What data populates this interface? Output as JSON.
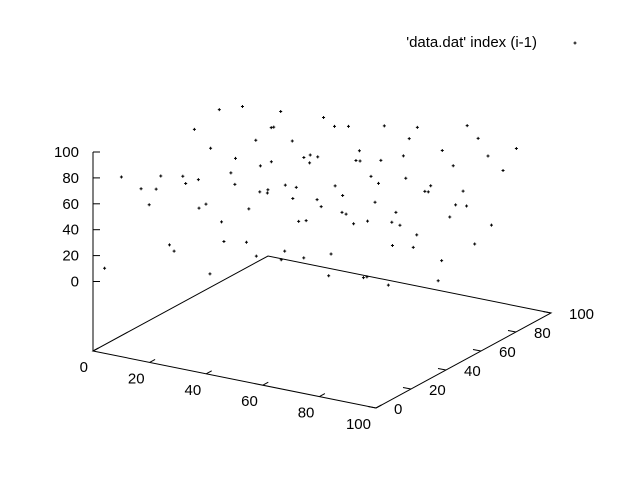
{
  "chart_data": {
    "type": "scatter",
    "plot_style": "3d-points",
    "grid": false,
    "legend_position": "top-right",
    "color": "#000000",
    "axes": {
      "x": {
        "range": [
          0,
          100
        ],
        "ticks": [
          "0",
          "20",
          "40",
          "60",
          "80",
          "100"
        ]
      },
      "y": {
        "range": [
          0,
          100
        ],
        "ticks": [
          "0",
          "20",
          "40",
          "60",
          "80",
          "100"
        ]
      },
      "z": {
        "range": [
          0,
          100
        ],
        "ticks": [
          "0",
          "20",
          "40",
          "60",
          "80",
          "100"
        ]
      }
    },
    "series": [
      {
        "name": "'data.dat' index (i-1)",
        "marker": "plus",
        "points": [
          [
            1,
            5,
            7
          ],
          [
            2,
            13,
            72
          ],
          [
            4,
            21,
            58
          ],
          [
            5,
            28,
            53
          ],
          [
            6,
            34,
            6
          ],
          [
            7,
            40,
            55
          ],
          [
            8,
            45,
            88
          ],
          [
            9,
            50,
            27
          ],
          [
            10,
            56,
            96
          ],
          [
            11,
            61,
            44
          ],
          [
            12,
            66,
            92
          ],
          [
            13,
            72,
            62
          ],
          [
            14,
            77,
            18
          ],
          [
            15,
            83,
            77
          ],
          [
            16,
            88,
            51
          ],
          [
            17,
            93,
            35
          ],
          [
            18,
            3,
            65
          ],
          [
            19,
            8,
            84
          ],
          [
            20,
            14,
            22
          ],
          [
            21,
            19,
            71
          ],
          [
            22,
            25,
            48
          ],
          [
            23,
            30,
            91
          ],
          [
            24,
            36,
            15
          ],
          [
            25,
            41,
            76
          ],
          [
            26,
            47,
            33
          ],
          [
            27,
            52,
            63
          ],
          [
            28,
            58,
            89
          ],
          [
            29,
            63,
            41
          ],
          [
            30,
            69,
            9
          ],
          [
            31,
            74,
            57
          ],
          [
            32,
            80,
            82
          ],
          [
            33,
            85,
            26
          ],
          [
            34,
            91,
            68
          ],
          [
            35,
            96,
            38
          ],
          [
            36,
            2,
            93
          ],
          [
            37,
            7,
            17
          ],
          [
            38,
            12,
            54
          ],
          [
            39,
            18,
            79
          ],
          [
            40,
            23,
            31
          ],
          [
            41,
            29,
            66
          ],
          [
            42,
            34,
            86
          ],
          [
            43,
            40,
            13
          ],
          [
            44,
            45,
            59
          ],
          [
            45,
            51,
            74
          ],
          [
            46,
            56,
            37
          ],
          [
            47,
            62,
            95
          ],
          [
            48,
            67,
            24
          ],
          [
            49,
            73,
            69
          ],
          [
            50,
            78,
            46
          ],
          [
            51,
            84,
            81
          ],
          [
            52,
            89,
            11
          ],
          [
            53,
            95,
            64
          ],
          [
            54,
            6,
            39
          ],
          [
            55,
            11,
            87
          ],
          [
            56,
            17,
            29
          ],
          [
            57,
            22,
            73
          ],
          [
            58,
            28,
            52
          ],
          [
            59,
            33,
            98
          ],
          [
            60,
            39,
            19
          ],
          [
            61,
            44,
            61
          ],
          [
            62,
            50,
            84
          ],
          [
            63,
            55,
            34
          ],
          [
            64,
            61,
            77
          ],
          [
            65,
            66,
            8
          ],
          [
            66,
            72,
            56
          ],
          [
            67,
            77,
            92
          ],
          [
            68,
            83,
            43
          ],
          [
            69,
            88,
            67
          ],
          [
            70,
            94,
            21
          ],
          [
            71,
            99,
            79
          ],
          [
            72,
            4,
            47
          ],
          [
            73,
            10,
            88
          ],
          [
            74,
            15,
            26
          ],
          [
            75,
            21,
            71
          ],
          [
            76,
            26,
            59
          ],
          [
            77,
            32,
            14
          ],
          [
            78,
            37,
            83
          ],
          [
            79,
            43,
            49
          ],
          [
            80,
            48,
            97
          ],
          [
            81,
            54,
            32
          ],
          [
            82,
            59,
            62
          ],
          [
            83,
            65,
            5
          ],
          [
            84,
            70,
            75
          ],
          [
            85,
            76,
            40
          ],
          [
            86,
            81,
            89
          ],
          [
            87,
            87,
            18
          ],
          [
            88,
            92,
            57
          ],
          [
            89,
            98,
            70
          ],
          [
            90,
            9,
            36
          ],
          [
            91,
            14,
            91
          ],
          [
            92,
            20,
            23
          ],
          [
            93,
            25,
            66
          ],
          [
            94,
            31,
            45
          ],
          [
            95,
            36,
            85
          ],
          [
            96,
            42,
            12
          ],
          [
            97,
            47,
            58
          ],
          [
            98,
            53,
            74
          ],
          [
            99,
            58,
            30
          ],
          [
            100,
            64,
            94
          ],
          [
            3,
            97,
            49
          ]
        ]
      }
    ]
  }
}
